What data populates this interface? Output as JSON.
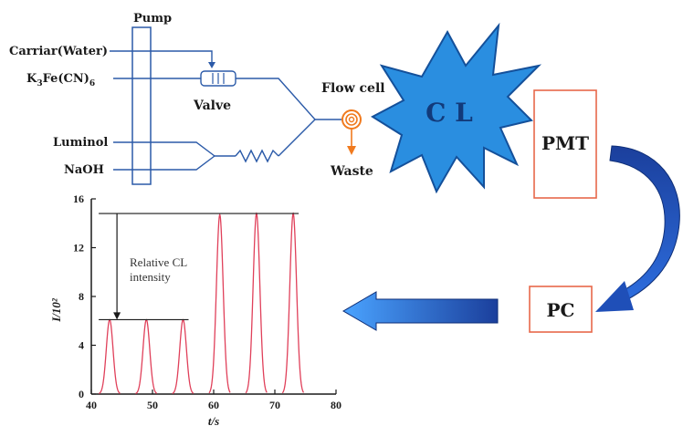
{
  "diagram": {
    "pump_label": "Pump",
    "inputs": {
      "carrier": "Carriar(Water)",
      "ferri_prefix": "K",
      "ferri_sub1": "3",
      "ferri_mid": "Fe(CN)",
      "ferri_sub2": "6",
      "luminol": "Luminol",
      "naoh": "NaOH"
    },
    "valve_label": "Valve",
    "flow_cell_label": "Flow cell",
    "waste_label": "Waste",
    "cl_label": "C L",
    "pmt_label": "PMT",
    "pc_label": "PC",
    "colors": {
      "line": "#2b5aa8",
      "starburst": "#2a8ee0",
      "flow_cell": "#f07a1e",
      "box_border": "#e8684a",
      "arrow": "#1f4fb8",
      "peak": "#e0405a"
    }
  },
  "chart_data": {
    "type": "line",
    "xlabel": "t/s",
    "ylabel": "I/10²",
    "xlim": [
      40,
      80
    ],
    "ylim": [
      0,
      16
    ],
    "x_ticks": [
      "40",
      "50",
      "60",
      "70",
      "80"
    ],
    "y_ticks": [
      "0",
      "4",
      "8",
      "12",
      "16"
    ],
    "annotation": [
      "Relative CL",
      "intensity"
    ],
    "peaks": [
      {
        "t": 43.0,
        "height": 6.1
      },
      {
        "t": 49.0,
        "height": 6.1
      },
      {
        "t": 55.0,
        "height": 6.1
      },
      {
        "t": 61.0,
        "height": 14.7
      },
      {
        "t": 67.0,
        "height": 14.8
      },
      {
        "t": 73.0,
        "height": 14.8
      }
    ]
  }
}
